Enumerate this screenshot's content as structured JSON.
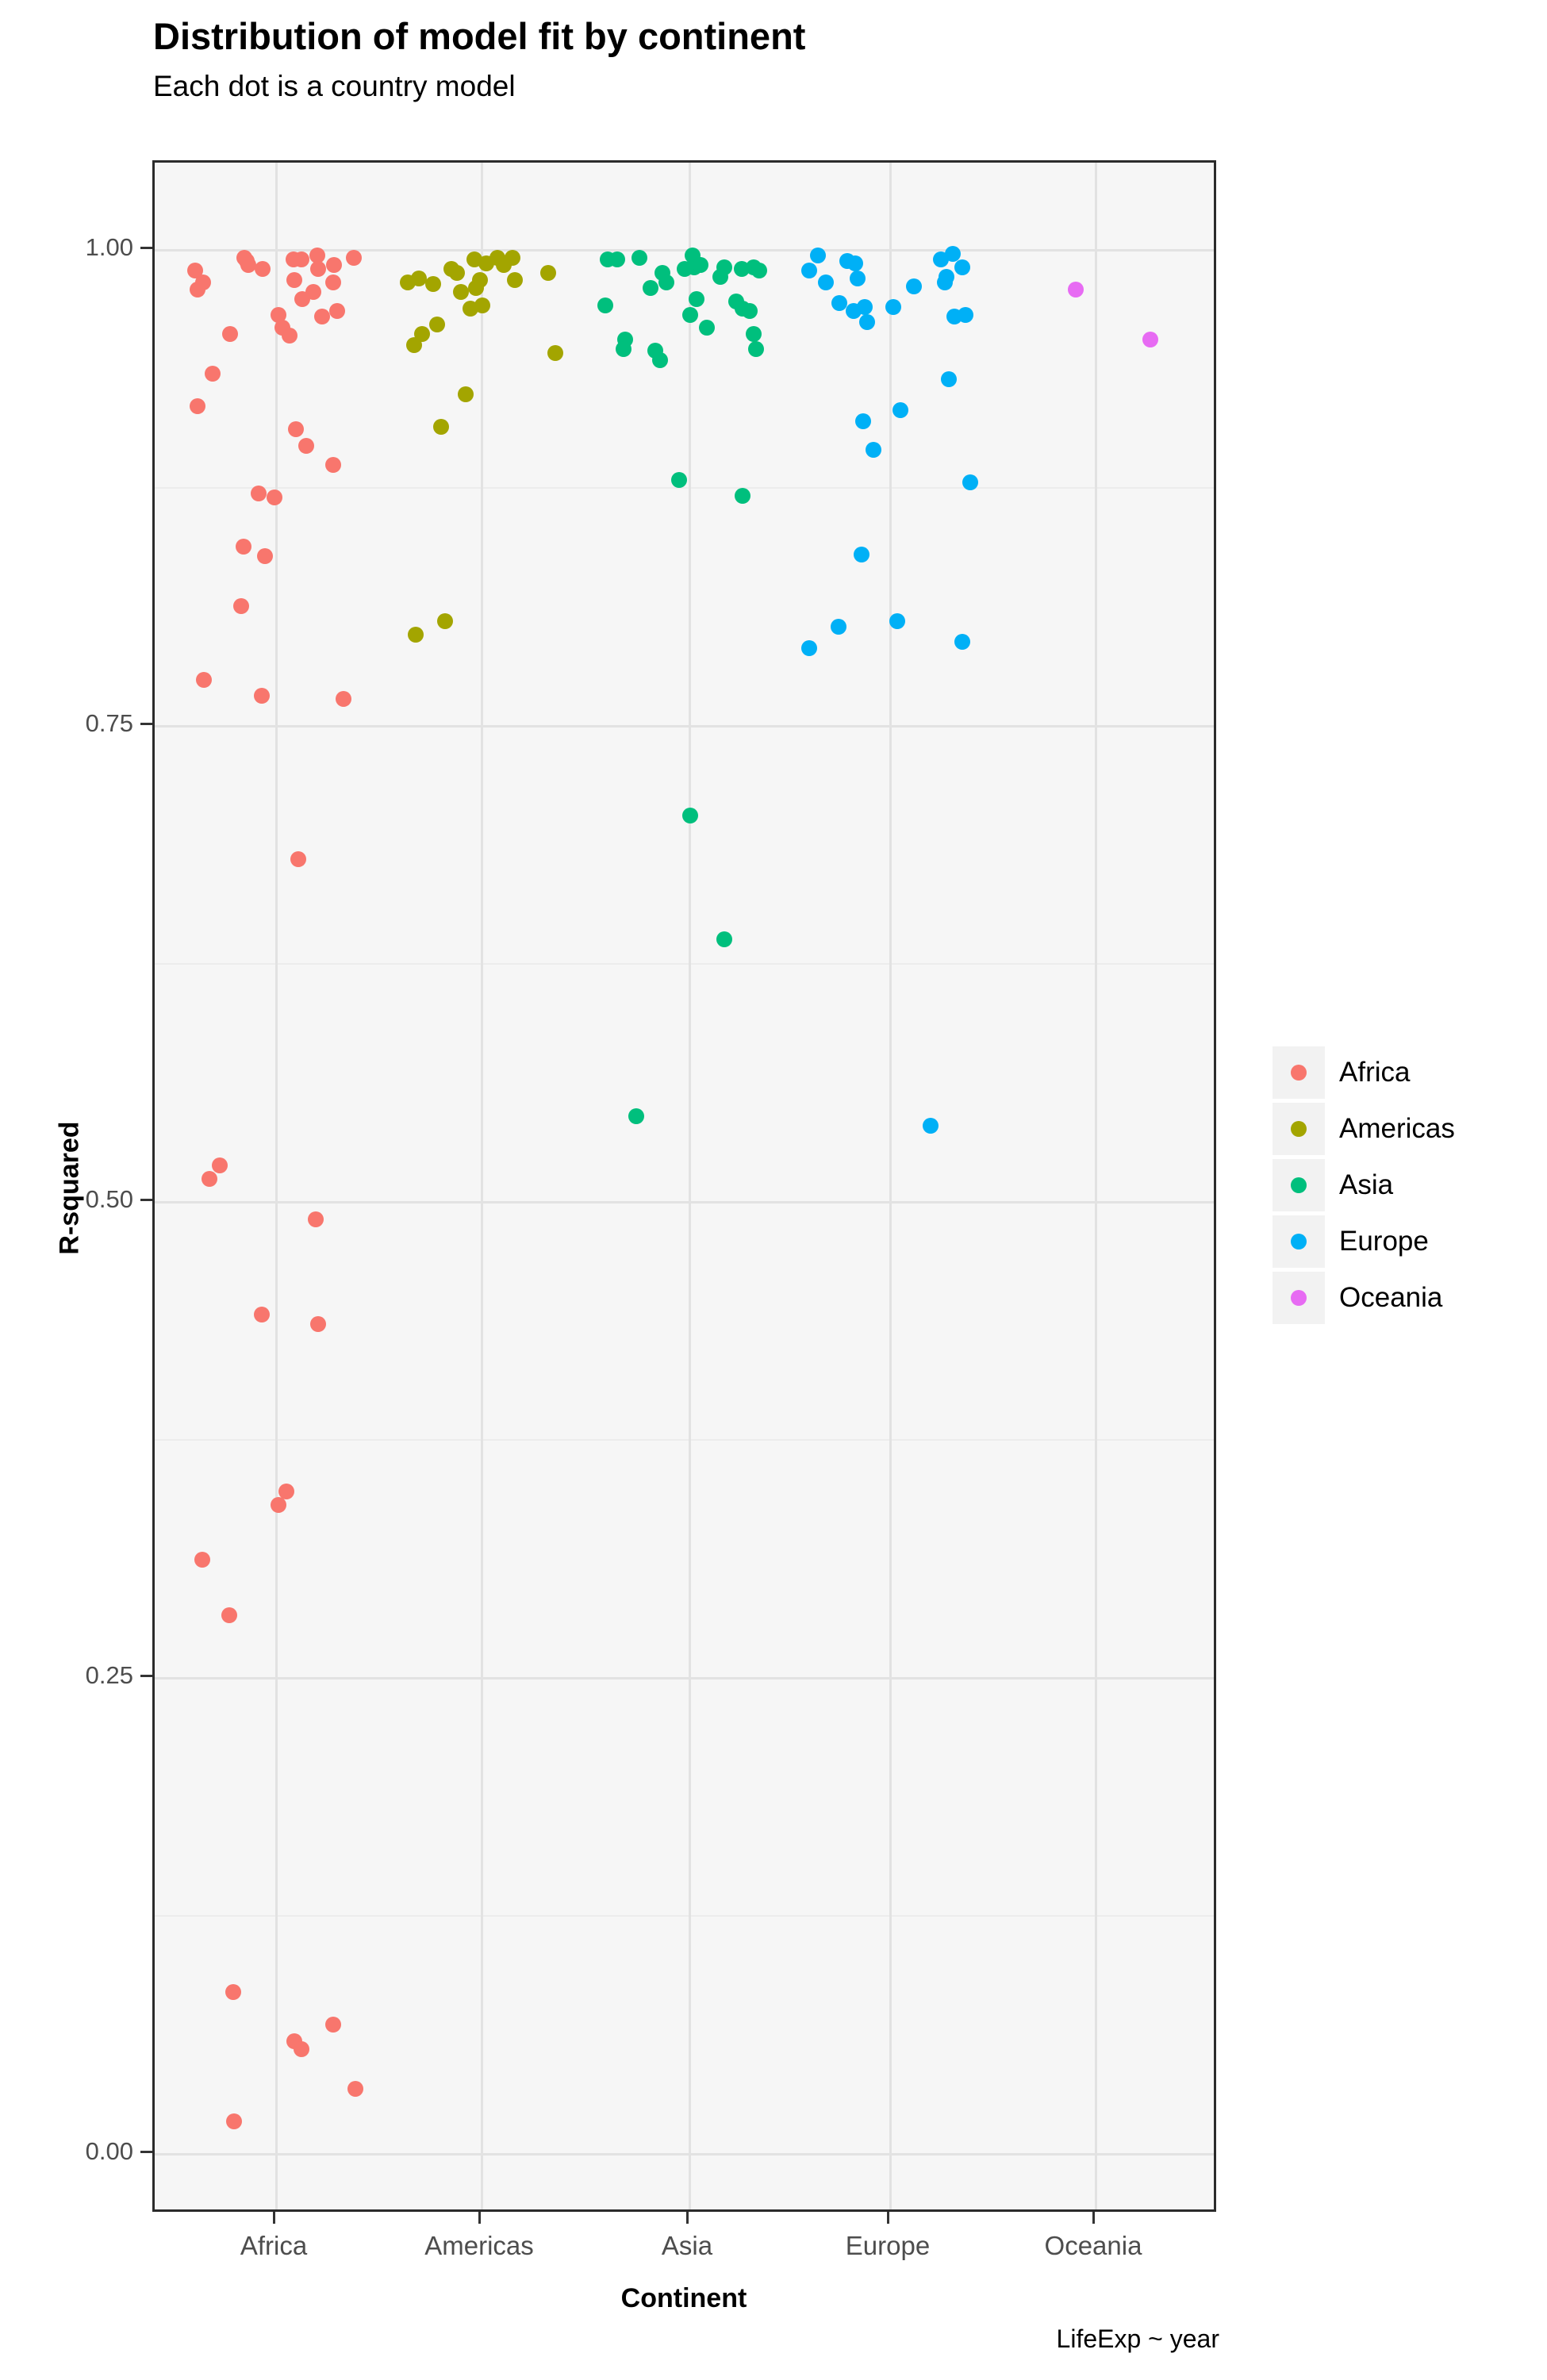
{
  "header": {
    "title": "Distribution of model fit by continent",
    "subtitle": "Each dot is a country model"
  },
  "chart_data": {
    "type": "scatter",
    "title": "Distribution of model fit by continent",
    "subtitle": "Each dot is a country model",
    "xlabel": "Continent",
    "ylabel": "R-squared",
    "caption": "LifeExp ~ year",
    "categories": [
      "Africa",
      "Americas",
      "Asia",
      "Europe",
      "Oceania"
    ],
    "y_major_ticks": [
      1.0,
      0.75,
      0.5,
      0.25,
      0.0
    ],
    "y_tick_labels": [
      "1.00",
      "0.75",
      "0.50",
      "0.25",
      "0.00"
    ],
    "y_minor_ticks": [
      0.875,
      0.625,
      0.375,
      0.125
    ],
    "ylim": [
      -0.045,
      1.045
    ],
    "grid": "major and minor horizontal, major vertical per category",
    "legend_position": "right",
    "point_note": "each point = [x jitter offset in px from category center, R-squared value]",
    "series": [
      {
        "name": "Africa",
        "color": "#F8766D",
        "points": [
          [
            -40,
            0.996
          ],
          [
            -37,
            0.994
          ],
          [
            -35,
            0.992
          ],
          [
            -17,
            0.99
          ],
          [
            -102,
            0.989
          ],
          [
            -92,
            0.983
          ],
          [
            -99,
            0.979
          ],
          [
            22,
            0.995
          ],
          [
            32,
            0.995
          ],
          [
            52,
            0.997
          ],
          [
            53,
            0.99
          ],
          [
            73,
            0.992
          ],
          [
            98,
            0.996
          ],
          [
            23,
            0.984
          ],
          [
            72,
            0.983
          ],
          [
            47,
            0.978
          ],
          [
            33,
            0.974
          ],
          [
            58,
            0.965
          ],
          [
            77,
            0.968
          ],
          [
            3,
            0.966
          ],
          [
            8,
            0.959
          ],
          [
            17,
            0.955
          ],
          [
            -58,
            0.956
          ],
          [
            -80,
            0.935
          ],
          [
            -99,
            0.918
          ],
          [
            25,
            0.906
          ],
          [
            38,
            0.897
          ],
          [
            72,
            0.887
          ],
          [
            -22,
            0.872
          ],
          [
            -2,
            0.87
          ],
          [
            -41,
            0.844
          ],
          [
            -14,
            0.839
          ],
          [
            -44,
            0.813
          ],
          [
            -91,
            0.774
          ],
          [
            -18,
            0.766
          ],
          [
            85,
            0.764
          ],
          [
            28,
            0.68
          ],
          [
            -71,
            0.519
          ],
          [
            -84,
            0.512
          ],
          [
            50,
            0.491
          ],
          [
            -18,
            0.441
          ],
          [
            53,
            0.436
          ],
          [
            13,
            0.348
          ],
          [
            3,
            0.341
          ],
          [
            -93,
            0.312
          ],
          [
            -59,
            0.283
          ],
          [
            -54,
            0.085
          ],
          [
            72,
            0.068
          ],
          [
            23,
            0.059
          ],
          [
            32,
            0.055
          ],
          [
            100,
            0.034
          ],
          [
            -53,
            0.017
          ]
        ]
      },
      {
        "name": "Americas",
        "color": "#A3A500",
        "points": [
          [
            -9,
            0.995
          ],
          [
            20,
            0.996
          ],
          [
            39,
            0.996
          ],
          [
            -93,
            0.983
          ],
          [
            -79,
            0.985
          ],
          [
            -61,
            0.982
          ],
          [
            -31,
            0.988
          ],
          [
            -2,
            0.984
          ],
          [
            42,
            0.984
          ],
          [
            84,
            0.988
          ],
          [
            -26,
            0.978
          ],
          [
            -14,
            0.969
          ],
          [
            1,
            0.971
          ],
          [
            -56,
            0.961
          ],
          [
            -75,
            0.956
          ],
          [
            -85,
            0.95
          ],
          [
            93,
            0.946
          ],
          [
            -20,
            0.924
          ],
          [
            -51,
            0.907
          ],
          [
            -46,
            0.805
          ],
          [
            -83,
            0.798
          ],
          [
            6,
            0.993
          ],
          [
            -38,
            0.99
          ],
          [
            28,
            0.992
          ],
          [
            -7,
            0.98
          ]
        ]
      },
      {
        "name": "Asia",
        "color": "#00BF7D",
        "points": [
          [
            -103,
            0.995
          ],
          [
            -91,
            0.995
          ],
          [
            -63,
            0.996
          ],
          [
            4,
            0.997
          ],
          [
            -6,
            0.99
          ],
          [
            6,
            0.991
          ],
          [
            -34,
            0.988
          ],
          [
            -29,
            0.983
          ],
          [
            -49,
            0.98
          ],
          [
            44,
            0.991
          ],
          [
            66,
            0.99
          ],
          [
            81,
            0.991
          ],
          [
            88,
            0.989
          ],
          [
            -106,
            0.971
          ],
          [
            9,
            0.974
          ],
          [
            1,
            0.966
          ],
          [
            59,
            0.973
          ],
          [
            67,
            0.969
          ],
          [
            76,
            0.968
          ],
          [
            22,
            0.959
          ],
          [
            81,
            0.956
          ],
          [
            84,
            0.948
          ],
          [
            -81,
            0.953
          ],
          [
            -83,
            0.948
          ],
          [
            -43,
            0.947
          ],
          [
            -37,
            0.942
          ],
          [
            14,
            0.992
          ],
          [
            39,
            0.986
          ],
          [
            -13,
            0.879
          ],
          [
            67,
            0.871
          ],
          [
            1,
            0.703
          ],
          [
            44,
            0.638
          ],
          [
            -67,
            0.545
          ]
        ]
      },
      {
        "name": "Europe",
        "color": "#00B0F6",
        "points": [
          [
            -91,
            0.997
          ],
          [
            -102,
            0.989
          ],
          [
            -81,
            0.983
          ],
          [
            -54,
            0.994
          ],
          [
            -44,
            0.993
          ],
          [
            -41,
            0.985
          ],
          [
            -64,
            0.972
          ],
          [
            -46,
            0.968
          ],
          [
            -32,
            0.97
          ],
          [
            -29,
            0.962
          ],
          [
            4,
            0.97
          ],
          [
            30,
            0.981
          ],
          [
            64,
            0.995
          ],
          [
            79,
            0.998
          ],
          [
            91,
            0.991
          ],
          [
            69,
            0.983
          ],
          [
            71,
            0.986
          ],
          [
            81,
            0.965
          ],
          [
            95,
            0.966
          ],
          [
            74,
            0.932
          ],
          [
            13,
            0.916
          ],
          [
            -34,
            0.91
          ],
          [
            -21,
            0.895
          ],
          [
            101,
            0.878
          ],
          [
            -36,
            0.84
          ],
          [
            -102,
            0.791
          ],
          [
            -65,
            0.802
          ],
          [
            9,
            0.805
          ],
          [
            91,
            0.794
          ],
          [
            51,
            0.54
          ]
        ]
      },
      {
        "name": "Oceania",
        "color": "#E76BF3",
        "points": [
          [
            -25,
            0.979
          ],
          [
            69,
            0.953
          ]
        ]
      }
    ]
  },
  "legend": {
    "entries": [
      {
        "label": "Africa",
        "color": "#F8766D"
      },
      {
        "label": "Americas",
        "color": "#A3A500"
      },
      {
        "label": "Asia",
        "color": "#00BF7D"
      },
      {
        "label": "Europe",
        "color": "#00B0F6"
      },
      {
        "label": "Oceania",
        "color": "#E76BF3"
      }
    ]
  },
  "colors": {
    "panel_background": "#F6F6F6",
    "grid_major": "#E2E2E2",
    "grid_minor": "#ECECEC",
    "panel_border": "#2b2b2b",
    "tick_text": "#4d4d4d",
    "legend_key_background": "#F2F2F2"
  }
}
